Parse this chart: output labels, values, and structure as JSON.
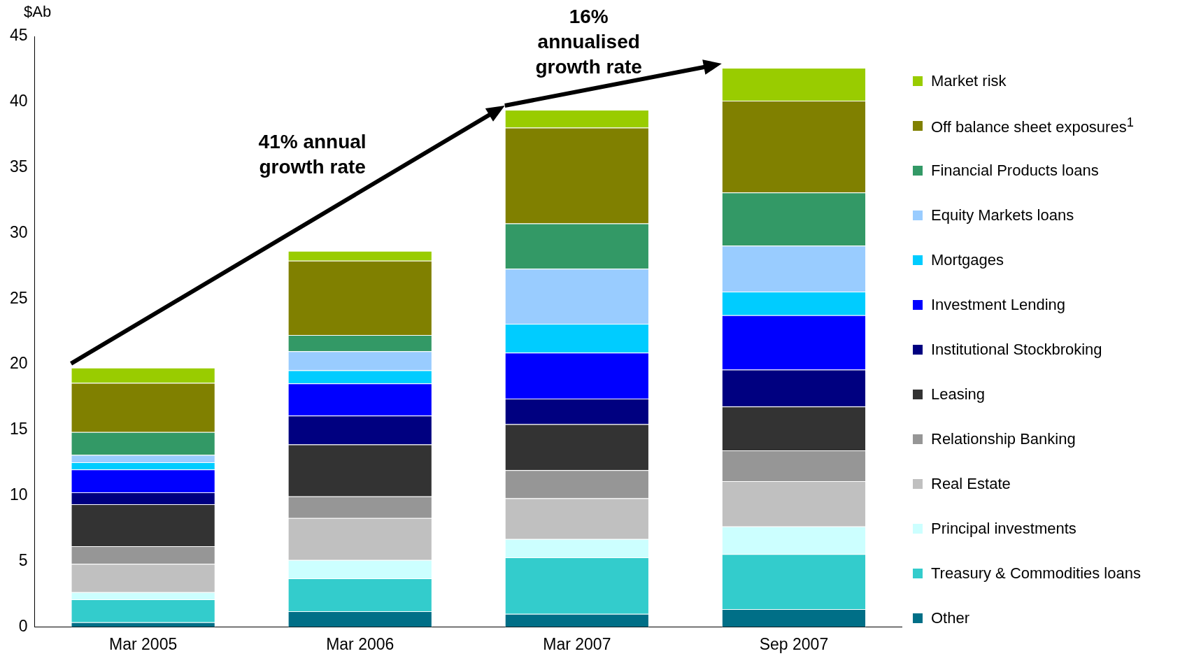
{
  "chart_data": {
    "type": "bar",
    "stacked": true,
    "ylabel": "$Ab",
    "categories": [
      "Mar 2005",
      "Mar 2006",
      "Mar 2007",
      "Sep 2007"
    ],
    "ylim": [
      0,
      45
    ],
    "yticks": [
      0,
      5,
      10,
      15,
      20,
      25,
      30,
      35,
      40,
      45
    ],
    "legend": "right",
    "annotations": [
      "41% annual growth rate",
      "16% annualised growth rate"
    ],
    "series": [
      {
        "name": "Other",
        "color": "#006f87",
        "values": [
          0.35,
          1.2,
          1.0,
          1.35
        ]
      },
      {
        "name": "Treasury & Commodities loans",
        "color": "#33cccc",
        "values": [
          1.75,
          2.5,
          4.3,
          4.2
        ]
      },
      {
        "name": "Principal investments",
        "color": "#ccffff",
        "values": [
          0.55,
          1.4,
          1.4,
          2.1
        ]
      },
      {
        "name": "Real Estate",
        "color": "#c0c0c0",
        "values": [
          2.15,
          3.2,
          3.1,
          3.45
        ]
      },
      {
        "name": "Relationship Banking",
        "color": "#969696",
        "values": [
          1.35,
          1.65,
          2.15,
          2.35
        ]
      },
      {
        "name": "Leasing",
        "color": "#333333",
        "values": [
          3.2,
          3.95,
          3.5,
          3.35
        ]
      },
      {
        "name": "Institutional Stockbroking",
        "color": "#000080",
        "values": [
          0.9,
          2.2,
          1.95,
          2.8
        ]
      },
      {
        "name": "Investment Lending",
        "color": "#0000ff",
        "values": [
          1.75,
          2.45,
          3.5,
          4.15
        ]
      },
      {
        "name": "Mortgages",
        "color": "#00ccff",
        "values": [
          0.55,
          1.0,
          2.2,
          1.8
        ]
      },
      {
        "name": "Equity Markets loans",
        "color": "#99ccff",
        "values": [
          0.55,
          1.45,
          4.2,
          3.5
        ]
      },
      {
        "name": "Financial Products loans",
        "color": "#339966",
        "values": [
          1.75,
          1.25,
          3.45,
          4.05
        ]
      },
      {
        "name": "Off balance sheet exposures$^{1}$",
        "color": "#808000",
        "values": [
          3.75,
          5.65,
          7.3,
          7.0
        ]
      },
      {
        "name": "Market risk",
        "color": "#99cc00",
        "values": [
          1.15,
          0.75,
          1.35,
          2.5
        ]
      }
    ]
  }
}
